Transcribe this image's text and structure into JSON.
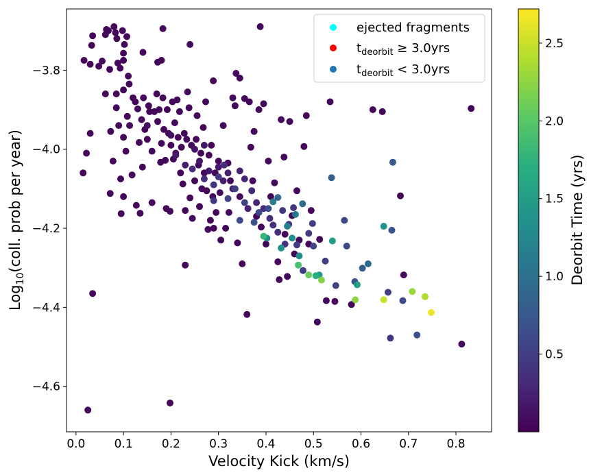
{
  "chart_data": {
    "type": "scatter",
    "xlabel": "Velocity Kick (km/s)",
    "ylabel_base": "Log",
    "ylabel_sub": "10",
    "ylabel_rest": "(coll. prob per year)",
    "colorbar_label": "Deorbit Time (yrs)",
    "xlim": [
      -0.02,
      0.875
    ],
    "ylim": [
      -4.715,
      -3.645
    ],
    "x_ticks": [
      "0.0",
      "0.1",
      "0.2",
      "0.3",
      "0.4",
      "0.5",
      "0.6",
      "0.7",
      "0.8"
    ],
    "x_tick_values": [
      0.0,
      0.1,
      0.2,
      0.3,
      0.4,
      0.5,
      0.6,
      0.7,
      0.8
    ],
    "y_ticks": [
      "−3.8",
      "−4.0",
      "−4.2",
      "−4.4",
      "−4.6"
    ],
    "y_tick_values": [
      -3.8,
      -4.0,
      -4.2,
      -4.4,
      -4.6
    ],
    "colorbar_range": [
      0.0,
      2.72
    ],
    "colorbar_ticks": [
      "0.5",
      "1.0",
      "1.5",
      "2.0",
      "2.5"
    ],
    "colorbar_tick_values": [
      0.5,
      1.0,
      1.5,
      2.0,
      2.5
    ],
    "colormap": "viridis",
    "legend": {
      "placement": "top-right",
      "entries": [
        {
          "label": "ejected fragments",
          "color": "#00ffff"
        },
        {
          "label_main": "t",
          "label_sub": "deorbit",
          "label_rest": " ≥  3.0yrs",
          "color": "#ff0000"
        },
        {
          "label_main": "t",
          "label_sub": "deorbit",
          "label_rest": " < 3.0yrs",
          "color": "#1f77b4"
        }
      ]
    },
    "points": [
      [
        0.017,
        -3.775,
        0.05
      ],
      [
        0.03,
        -3.785,
        0.05
      ],
      [
        0.033,
        -3.737,
        0.05
      ],
      [
        0.035,
        -3.713,
        0.05
      ],
      [
        0.048,
        -3.79,
        0.05
      ],
      [
        0.055,
        -3.777,
        0.05
      ],
      [
        0.062,
        -3.71,
        0.05
      ],
      [
        0.064,
        -3.697,
        0.05
      ],
      [
        0.068,
        -3.7,
        0.05
      ],
      [
        0.071,
        -3.798,
        0.05
      ],
      [
        0.08,
        -3.69,
        0.05
      ],
      [
        0.083,
        -3.705,
        0.05
      ],
      [
        0.086,
        -3.72,
        0.05
      ],
      [
        0.088,
        -3.782,
        0.05
      ],
      [
        0.093,
        -3.795,
        0.05
      ],
      [
        0.098,
        -3.7,
        0.05
      ],
      [
        0.1,
        -3.757,
        0.05
      ],
      [
        0.1,
        -3.775,
        0.05
      ],
      [
        0.102,
        -3.735,
        0.05
      ],
      [
        0.107,
        -3.715,
        0.05
      ],
      [
        0.11,
        -3.815,
        0.05
      ],
      [
        0.112,
        -3.835,
        0.05
      ],
      [
        0.062,
        -3.86,
        0.05
      ],
      [
        0.085,
        -3.86,
        0.05
      ],
      [
        0.1,
        -3.85,
        0.05
      ],
      [
        0.141,
        -3.755,
        0.05
      ],
      [
        0.172,
        -3.78,
        0.05
      ],
      [
        0.18,
        -3.775,
        0.05
      ],
      [
        0.183,
        -3.695,
        0.05
      ],
      [
        0.24,
        -3.735,
        0.05
      ],
      [
        0.289,
        -3.827,
        0.05
      ],
      [
        0.337,
        -3.808,
        0.05
      ],
      [
        0.345,
        -3.82,
        0.05
      ],
      [
        0.388,
        -3.69,
        0.05
      ],
      [
        0.015,
        -4.06,
        0.05
      ],
      [
        0.022,
        -4.01,
        0.05
      ],
      [
        0.03,
        -3.96,
        0.05
      ],
      [
        0.035,
        -4.365,
        0.05
      ],
      [
        0.025,
        -4.66,
        0.05
      ],
      [
        0.073,
        -3.955,
        0.05
      ],
      [
        0.072,
        -4.112,
        0.05
      ],
      [
        0.078,
        -4.03,
        0.05
      ],
      [
        0.085,
        -3.895,
        0.05
      ],
      [
        0.09,
        -3.94,
        0.05
      ],
      [
        0.094,
        -4.075,
        0.05
      ],
      [
        0.095,
        -4.163,
        0.05
      ],
      [
        0.1,
        -3.97,
        0.05
      ],
      [
        0.1,
        -4.12,
        0.05
      ],
      [
        0.105,
        -4.005,
        0.05
      ],
      [
        0.108,
        -3.917,
        0.05
      ],
      [
        0.113,
        -3.94,
        0.05
      ],
      [
        0.118,
        -4.065,
        0.05
      ],
      [
        0.12,
        -3.87,
        0.05
      ],
      [
        0.125,
        -3.88,
        0.05
      ],
      [
        0.127,
        -4.142,
        0.05
      ],
      [
        0.13,
        -3.898,
        0.05
      ],
      [
        0.133,
        -3.983,
        0.05
      ],
      [
        0.135,
        -4.162,
        0.05
      ],
      [
        0.138,
        -3.925,
        0.05
      ],
      [
        0.14,
        -4.045,
        0.05
      ],
      [
        0.142,
        -3.87,
        0.05
      ],
      [
        0.145,
        -3.95,
        0.05
      ],
      [
        0.15,
        -3.975,
        0.05
      ],
      [
        0.153,
        -3.89,
        0.05
      ],
      [
        0.155,
        -3.905,
        0.05
      ],
      [
        0.16,
        -4.005,
        0.05
      ],
      [
        0.16,
        -4.135,
        0.05
      ],
      [
        0.165,
        -3.905,
        0.05
      ],
      [
        0.17,
        -3.86,
        0.05
      ],
      [
        0.172,
        -3.93,
        0.05
      ],
      [
        0.175,
        -3.9,
        0.05
      ],
      [
        0.178,
        -4.033,
        0.05
      ],
      [
        0.18,
        -3.985,
        0.05
      ],
      [
        0.183,
        -3.87,
        0.05
      ],
      [
        0.185,
        -3.95,
        0.05
      ],
      [
        0.188,
        -4.028,
        0.05
      ],
      [
        0.19,
        -4.15,
        0.05
      ],
      [
        0.192,
        -3.9,
        0.05
      ],
      [
        0.195,
        -3.96,
        0.05
      ],
      [
        0.198,
        -4.157,
        0.05
      ],
      [
        0.198,
        -4.642,
        0.05
      ],
      [
        0.2,
        -3.99,
        0.05
      ],
      [
        0.203,
        -3.88,
        0.05
      ],
      [
        0.205,
        -4.025,
        0.05
      ],
      [
        0.208,
        -3.933,
        0.05
      ],
      [
        0.21,
        -4.01,
        0.05
      ],
      [
        0.213,
        -3.875,
        0.05
      ],
      [
        0.215,
        -3.97,
        0.05
      ],
      [
        0.218,
        -3.905,
        0.05
      ],
      [
        0.22,
        -4.06,
        0.05
      ],
      [
        0.222,
        -3.995,
        0.05
      ],
      [
        0.225,
        -4.088,
        0.05
      ],
      [
        0.228,
        -3.96,
        0.05
      ],
      [
        0.23,
        -4.155,
        0.05
      ],
      [
        0.23,
        -4.293,
        0.05
      ],
      [
        0.233,
        -3.975,
        0.05
      ],
      [
        0.235,
        -3.855,
        0.05
      ],
      [
        0.238,
        -3.895,
        0.05
      ],
      [
        0.24,
        -4.123,
        0.05
      ],
      [
        0.243,
        -3.99,
        0.05
      ],
      [
        0.245,
        -4.175,
        0.05
      ],
      [
        0.25,
        -4.08,
        0.05
      ],
      [
        0.253,
        -3.975,
        0.05
      ],
      [
        0.255,
        -3.915,
        0.05
      ],
      [
        0.258,
        -4.04,
        0.05
      ],
      [
        0.26,
        -4.145,
        0.05
      ],
      [
        0.263,
        -4.01,
        0.05
      ],
      [
        0.265,
        -4.1,
        0.05
      ],
      [
        0.268,
        -3.945,
        0.05
      ],
      [
        0.27,
        -4.06,
        0.05
      ],
      [
        0.273,
        -3.88,
        0.05
      ],
      [
        0.275,
        -4.105,
        0.05
      ],
      [
        0.278,
        -4.203,
        0.05
      ],
      [
        0.28,
        -4.015,
        0.05
      ],
      [
        0.283,
        -4.18,
        0.05
      ],
      [
        0.285,
        -3.99,
        0.05
      ],
      [
        0.288,
        -4.12,
        0.05
      ],
      [
        0.29,
        -4.2,
        0.05
      ],
      [
        0.293,
        -4.06,
        0.05
      ],
      [
        0.295,
        -4.16,
        0.05
      ],
      [
        0.3,
        -4.03,
        0.05
      ],
      [
        0.303,
        -4.11,
        0.05
      ],
      [
        0.305,
        -4.23,
        0.05
      ],
      [
        0.31,
        -3.94,
        0.05
      ],
      [
        0.315,
        -4.2,
        0.05
      ],
      [
        0.32,
        -4.035,
        0.05
      ],
      [
        0.322,
        -4.16,
        0.05
      ],
      [
        0.325,
        -4.08,
        0.05
      ],
      [
        0.33,
        -3.87,
        0.05
      ],
      [
        0.335,
        -3.89,
        0.05
      ],
      [
        0.34,
        -4.237,
        0.05
      ],
      [
        0.345,
        -4.12,
        0.05
      ],
      [
        0.35,
        -4.29,
        0.05
      ],
      [
        0.355,
        -3.872,
        0.05
      ],
      [
        0.36,
        -4.418,
        0.05
      ],
      [
        0.365,
        -3.88,
        0.05
      ],
      [
        0.368,
        -3.995,
        0.05
      ],
      [
        0.372,
        -4.08,
        0.05
      ],
      [
        0.375,
        -3.955,
        0.05
      ],
      [
        0.38,
        -4.17,
        0.05
      ],
      [
        0.385,
        -3.9,
        0.05
      ],
      [
        0.39,
        -4.197,
        0.05
      ],
      [
        0.395,
        -3.885,
        0.05
      ],
      [
        0.4,
        -4.24,
        0.05
      ],
      [
        0.405,
        -4.03,
        0.05
      ],
      [
        0.41,
        -4.12,
        0.05
      ],
      [
        0.418,
        -4.085,
        0.05
      ],
      [
        0.425,
        -4.285,
        0.05
      ],
      [
        0.428,
        -4.33,
        0.05
      ],
      [
        0.432,
        -3.925,
        0.05
      ],
      [
        0.438,
        -4.02,
        0.05
      ],
      [
        0.44,
        -4.215,
        0.05
      ],
      [
        0.445,
        -4.322,
        0.05
      ],
      [
        0.45,
        -3.93,
        0.05
      ],
      [
        0.455,
        -4.168,
        0.05
      ],
      [
        0.46,
        -4.265,
        0.05
      ],
      [
        0.465,
        -4.105,
        0.05
      ],
      [
        0.47,
        -4.23,
        0.05
      ],
      [
        0.48,
        -3.993,
        0.05
      ],
      [
        0.485,
        -3.915,
        0.05
      ],
      [
        0.49,
        -4.24,
        0.05
      ],
      [
        0.495,
        -4.155,
        0.05
      ],
      [
        0.508,
        -4.437,
        0.05
      ],
      [
        0.513,
        -4.228,
        0.05
      ],
      [
        0.527,
        -4.383,
        0.05
      ],
      [
        0.535,
        -3.88,
        0.05
      ],
      [
        0.545,
        -4.385,
        0.05
      ],
      [
        0.58,
        -4.393,
        0.05
      ],
      [
        0.625,
        -3.9,
        0.05
      ],
      [
        0.645,
        -3.905,
        0.05
      ],
      [
        0.683,
        -4.118,
        0.05
      ],
      [
        0.69,
        -4.318,
        0.05
      ],
      [
        0.812,
        -4.493,
        0.05
      ],
      [
        0.832,
        -3.897,
        0.05
      ],
      [
        0.15,
        -3.94,
        0.1
      ],
      [
        0.2,
        -3.965,
        0.12
      ],
      [
        0.26,
        -4.03,
        0.15
      ],
      [
        0.28,
        -4.055,
        0.18
      ],
      [
        0.3,
        -4.045,
        0.2
      ],
      [
        0.31,
        -4.08,
        0.22
      ],
      [
        0.32,
        -4.06,
        0.25
      ],
      [
        0.25,
        -4.0,
        0.15
      ],
      [
        0.27,
        -3.99,
        0.18
      ],
      [
        0.33,
        -4.1,
        0.2
      ],
      [
        0.345,
        -4.055,
        0.25
      ],
      [
        0.355,
        -4.075,
        0.28
      ],
      [
        0.362,
        -4.15,
        0.25
      ],
      [
        0.37,
        -4.105,
        0.3
      ],
      [
        0.38,
        -4.135,
        0.28
      ],
      [
        0.395,
        -4.15,
        0.32
      ],
      [
        0.408,
        -4.175,
        0.35
      ],
      [
        0.415,
        -4.192,
        0.38
      ],
      [
        0.425,
        -4.21,
        0.35
      ],
      [
        0.435,
        -4.155,
        0.4
      ],
      [
        0.44,
        -4.24,
        0.38
      ],
      [
        0.448,
        -4.19,
        0.42
      ],
      [
        0.458,
        -4.148,
        0.4
      ],
      [
        0.465,
        -4.242,
        0.45
      ],
      [
        0.478,
        -4.307,
        0.5
      ],
      [
        0.49,
        -4.213,
        0.45
      ],
      [
        0.498,
        -4.188,
        0.48
      ],
      [
        0.5,
        -4.245,
        0.55
      ],
      [
        0.525,
        -4.283,
        0.5
      ],
      [
        0.547,
        -4.345,
        0.55
      ],
      [
        0.565,
        -4.18,
        0.6
      ],
      [
        0.57,
        -4.245,
        0.6
      ],
      [
        0.587,
        -4.335,
        0.7
      ],
      [
        0.603,
        -4.301,
        0.8
      ],
      [
        0.615,
        -4.29,
        0.95
      ],
      [
        0.657,
        -4.362,
        0.5
      ],
      [
        0.662,
        -4.478,
        0.4
      ],
      [
        0.665,
        -4.205,
        0.7
      ],
      [
        0.667,
        -4.033,
        0.75
      ],
      [
        0.688,
        -4.383,
        0.6
      ],
      [
        0.718,
        -4.47,
        0.65
      ],
      [
        0.538,
        -4.072,
        0.8
      ],
      [
        0.477,
        -4.138,
        1.0
      ],
      [
        0.462,
        -4.165,
        1.1
      ],
      [
        0.445,
        -4.195,
        1.2
      ],
      [
        0.415,
        -4.133,
        1.15
      ],
      [
        0.402,
        -4.225,
        1.3
      ],
      [
        0.432,
        -4.25,
        1.4
      ],
      [
        0.455,
        -4.225,
        1.35
      ],
      [
        0.512,
        -4.318,
        1.45
      ],
      [
        0.47,
        -4.27,
        1.3
      ],
      [
        0.54,
        -4.232,
        1.5
      ],
      [
        0.592,
        -4.343,
        1.5
      ],
      [
        0.648,
        -4.195,
        1.4
      ],
      [
        0.468,
        -4.293,
        1.9
      ],
      [
        0.49,
        -4.318,
        2.1
      ],
      [
        0.505,
        -4.32,
        1.7
      ],
      [
        0.517,
        -4.331,
        2.2
      ],
      [
        0.588,
        -4.381,
        2.25
      ],
      [
        0.648,
        -4.381,
        2.5
      ],
      [
        0.708,
        -4.36,
        2.3
      ],
      [
        0.735,
        -4.373,
        2.4
      ],
      [
        0.748,
        -4.413,
        2.65
      ],
      [
        0.395,
        -4.22,
        1.8
      ],
      [
        0.425,
        -4.122,
        0.9
      ],
      [
        0.375,
        -4.185,
        0.7
      ],
      [
        0.345,
        -4.18,
        0.6
      ],
      [
        0.32,
        -4.125,
        0.55
      ],
      [
        0.29,
        -4.09,
        0.4
      ],
      [
        0.27,
        -4.075,
        0.35
      ],
      [
        0.23,
        -4.04,
        0.25
      ],
      [
        0.21,
        -4.015,
        0.2
      ],
      [
        0.245,
        -4.05,
        0.3
      ],
      [
        0.3,
        -4.07,
        0.45
      ],
      [
        0.335,
        -4.1,
        0.5
      ],
      [
        0.355,
        -4.135,
        0.55
      ],
      [
        0.385,
        -4.16,
        0.6
      ],
      [
        0.405,
        -4.15,
        0.65
      ],
      [
        0.312,
        -4.04,
        0.35
      ],
      [
        0.29,
        -4.13,
        0.45
      ]
    ]
  }
}
